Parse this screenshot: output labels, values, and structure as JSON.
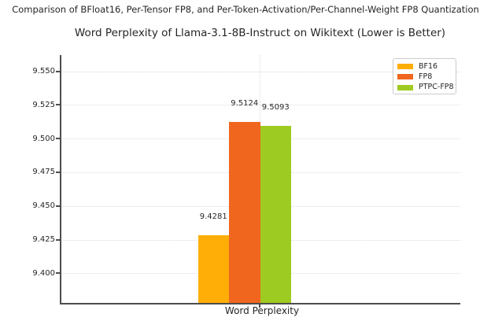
{
  "chart_data": {
    "type": "bar",
    "suptitle": "Comparison of BFloat16, Per-Tensor FP8, and Per-Token-Activation/Per-Channel-Weight FP8 Quantization",
    "title": "Word Perplexity of Llama-3.1-8B-Instruct on Wikitext (Lower is Better)",
    "xlabel": "Word Perplexity",
    "ylabel": "",
    "categories": [
      "Word Perplexity"
    ],
    "series": [
      {
        "name": "BF16",
        "value": 9.4281,
        "label": "9.4281",
        "color": "#FFAE08"
      },
      {
        "name": "FP8",
        "value": 9.5124,
        "label": "9.5124",
        "color": "#F0661E"
      },
      {
        "name": "PTPC-FP8",
        "value": 9.5093,
        "label": "9.5093",
        "color": "#9ECB21"
      }
    ],
    "ylim": [
      9.378,
      9.562
    ],
    "ytick_values": [
      9.4,
      9.425,
      9.45,
      9.475,
      9.5,
      9.525,
      9.55
    ],
    "ytick_labels": [
      "9.400",
      "9.425",
      "9.450",
      "9.475",
      "9.500",
      "9.525",
      "9.550"
    ],
    "grid": true,
    "grid_style": "dotted",
    "legend_position": "upper right"
  },
  "colors": {
    "background": "#FFFFFF",
    "text": "#262626",
    "spine": "#4D4D4D",
    "gridline": "#DCDCDC",
    "legend_border": "#CCCCCC"
  }
}
